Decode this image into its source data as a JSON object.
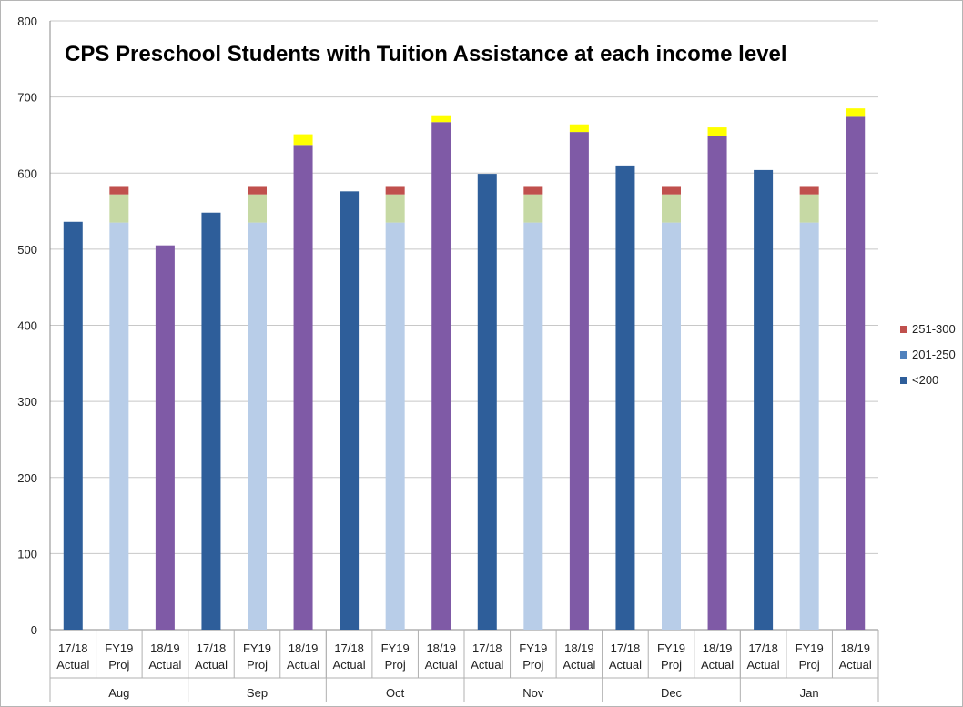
{
  "chart_data": {
    "type": "bar",
    "stacked": true,
    "title": "CPS Preschool Students with Tuition Assistance at each income level",
    "xlabel": "",
    "ylabel": "",
    "ylim": [
      0,
      800
    ],
    "yticks": [
      0,
      100,
      200,
      300,
      400,
      500,
      600,
      700,
      800
    ],
    "grid": true,
    "legend_position": "right",
    "legend": [
      {
        "label": "251-300",
        "color": "#c0504d"
      },
      {
        "label": "201-250",
        "color": "#4f81bd"
      },
      {
        "label": "<200",
        "color": "#2e5e9a"
      }
    ],
    "groups": [
      {
        "label": "Aug",
        "bars": [
          {
            "label_top": "17/18",
            "label_bottom": "Actual",
            "segments": [
              {
                "value": 536,
                "color": "#2e5e9a"
              }
            ]
          },
          {
            "label_top": "FY19",
            "label_bottom": "Proj",
            "segments": [
              {
                "value": 535,
                "color": "#b8cde8"
              },
              {
                "value": 37,
                "color": "#c6d9a4"
              },
              {
                "value": 11,
                "color": "#c0504d"
              }
            ]
          },
          {
            "label_top": "18/19",
            "label_bottom": "Actual",
            "segments": [
              {
                "value": 505,
                "color": "#7f5aa6"
              }
            ]
          }
        ]
      },
      {
        "label": "Sep",
        "bars": [
          {
            "label_top": "17/18",
            "label_bottom": "Actual",
            "segments": [
              {
                "value": 548,
                "color": "#2e5e9a"
              }
            ]
          },
          {
            "label_top": "FY19",
            "label_bottom": "Proj",
            "segments": [
              {
                "value": 535,
                "color": "#b8cde8"
              },
              {
                "value": 37,
                "color": "#c6d9a4"
              },
              {
                "value": 11,
                "color": "#c0504d"
              }
            ]
          },
          {
            "label_top": "18/19",
            "label_bottom": "Actual",
            "segments": [
              {
                "value": 637,
                "color": "#7f5aa6"
              },
              {
                "value": 14,
                "color": "#ffff00"
              }
            ]
          }
        ]
      },
      {
        "label": "Oct",
        "bars": [
          {
            "label_top": "17/18",
            "label_bottom": "Actual",
            "segments": [
              {
                "value": 576,
                "color": "#2e5e9a"
              }
            ]
          },
          {
            "label_top": "FY19",
            "label_bottom": "Proj",
            "segments": [
              {
                "value": 535,
                "color": "#b8cde8"
              },
              {
                "value": 37,
                "color": "#c6d9a4"
              },
              {
                "value": 11,
                "color": "#c0504d"
              }
            ]
          },
          {
            "label_top": "18/19",
            "label_bottom": "Actual",
            "segments": [
              {
                "value": 667,
                "color": "#7f5aa6"
              },
              {
                "value": 9,
                "color": "#ffff00"
              }
            ]
          }
        ]
      },
      {
        "label": "Nov",
        "bars": [
          {
            "label_top": "17/18",
            "label_bottom": "Actual",
            "segments": [
              {
                "value": 599,
                "color": "#2e5e9a"
              }
            ]
          },
          {
            "label_top": "FY19",
            "label_bottom": "Proj",
            "segments": [
              {
                "value": 535,
                "color": "#b8cde8"
              },
              {
                "value": 37,
                "color": "#c6d9a4"
              },
              {
                "value": 11,
                "color": "#c0504d"
              }
            ]
          },
          {
            "label_top": "18/19",
            "label_bottom": "Actual",
            "segments": [
              {
                "value": 654,
                "color": "#7f5aa6"
              },
              {
                "value": 10,
                "color": "#ffff00"
              }
            ]
          }
        ]
      },
      {
        "label": "Dec",
        "bars": [
          {
            "label_top": "17/18",
            "label_bottom": "Actual",
            "segments": [
              {
                "value": 610,
                "color": "#2e5e9a"
              }
            ]
          },
          {
            "label_top": "FY19",
            "label_bottom": "Proj",
            "segments": [
              {
                "value": 535,
                "color": "#b8cde8"
              },
              {
                "value": 37,
                "color": "#c6d9a4"
              },
              {
                "value": 11,
                "color": "#c0504d"
              }
            ]
          },
          {
            "label_top": "18/19",
            "label_bottom": "Actual",
            "segments": [
              {
                "value": 649,
                "color": "#7f5aa6"
              },
              {
                "value": 11,
                "color": "#ffff00"
              }
            ]
          }
        ]
      },
      {
        "label": "Jan",
        "bars": [
          {
            "label_top": "17/18",
            "label_bottom": "Actual",
            "segments": [
              {
                "value": 604,
                "color": "#2e5e9a"
              }
            ]
          },
          {
            "label_top": "FY19",
            "label_bottom": "Proj",
            "segments": [
              {
                "value": 535,
                "color": "#b8cde8"
              },
              {
                "value": 37,
                "color": "#c6d9a4"
              },
              {
                "value": 11,
                "color": "#c0504d"
              }
            ]
          },
          {
            "label_top": "18/19",
            "label_bottom": "Actual",
            "segments": [
              {
                "value": 674,
                "color": "#7f5aa6"
              },
              {
                "value": 11,
                "color": "#ffff00"
              }
            ]
          }
        ]
      }
    ]
  }
}
